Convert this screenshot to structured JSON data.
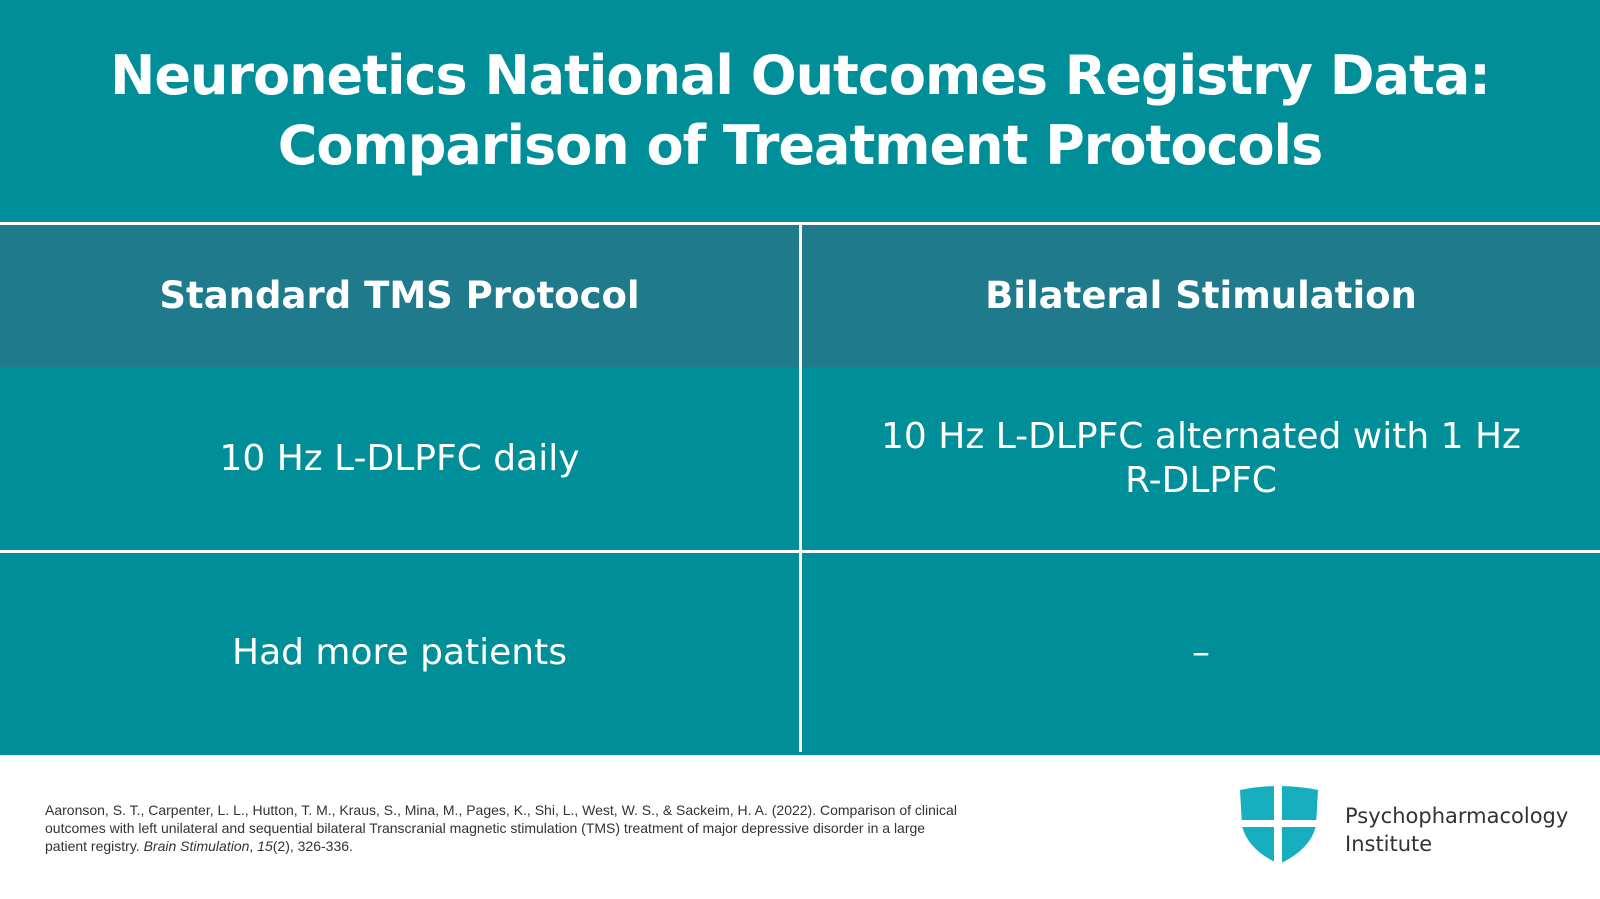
{
  "title": {
    "lines": [
      "Neuronetics National Outcomes Registry Data:",
      "Comparison of Treatment Protocols"
    ]
  },
  "table": {
    "header": [
      "Standard TMS Protocol",
      "Bilateral Stimulation"
    ],
    "rows": [
      [
        "10 Hz L-DLPFC daily",
        "10 Hz L-DLPFC alternated with 1 Hz R-DLPFC"
      ],
      [
        "Had more patients",
        "–"
      ]
    ]
  },
  "citation": {
    "parts": [
      "Aaronson, S. T., Carpenter, L. L., Hutton, T. M., Kraus, S., Mina, M., Pages, K., Shi, L., West, W. S., & Sackeim, H. A. (2022). Comparison of clinical outcomes with left unilateral and sequential bilateral Transcranial magnetic stimulation (TMS) treatment of major depressive disorder in a large patient registry. ",
      "Brain Stimulation",
      ", ",
      "15",
      "(2), 326-336."
    ]
  },
  "logo": {
    "lines": [
      "Psychopharmacology",
      "Institute"
    ]
  }
}
